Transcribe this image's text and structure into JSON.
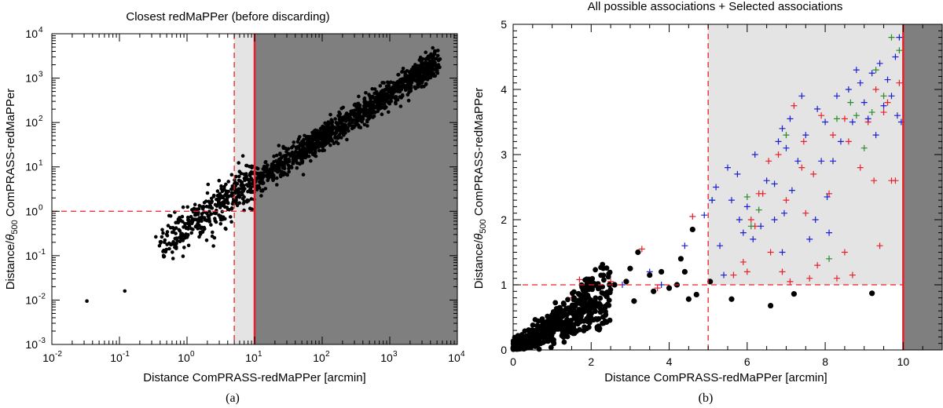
{
  "figure": {
    "caption_a": "(a)",
    "caption_b": "(b)"
  },
  "chart_data": [
    {
      "id": "a",
      "type": "scatter",
      "title": "Closest redMaPPer (before discarding)",
      "xlabel": "Distance ComPRASS-redMaPPer [arcmin]",
      "ylabel_prefix": "Distance/",
      "ylabel_symbol": "θ",
      "ylabel_sub": "500",
      "ylabel_suffix": " ComPRASS-redMaPPer",
      "xscale": "log",
      "yscale": "log",
      "xlim": [
        0.01,
        10000
      ],
      "ylim": [
        0.001,
        10000
      ],
      "x_ticks": [
        {
          "base": "10",
          "exp": "-2"
        },
        {
          "base": "10",
          "exp": "-1"
        },
        {
          "base": "10",
          "exp": "0"
        },
        {
          "base": "10",
          "exp": "1"
        },
        {
          "base": "10",
          "exp": "2"
        },
        {
          "base": "10",
          "exp": "3"
        },
        {
          "base": "10",
          "exp": "4"
        }
      ],
      "y_ticks": [
        {
          "base": "10",
          "exp": "-3"
        },
        {
          "base": "10",
          "exp": "-2"
        },
        {
          "base": "10",
          "exp": "-1"
        },
        {
          "base": "10",
          "exp": "0"
        },
        {
          "base": "10",
          "exp": "1"
        },
        {
          "base": "10",
          "exp": "2"
        },
        {
          "base": "10",
          "exp": "3"
        },
        {
          "base": "10",
          "exp": "4"
        }
      ],
      "light_region_x": [
        5,
        10
      ],
      "dark_region_x": [
        10,
        10000
      ],
      "vline_dashed_x": 5,
      "vline_solid_x": 10,
      "hline_dashed_y": 1,
      "colors": {
        "light": "#e4e4e4",
        "dark": "#7f7f7f",
        "points": "#000000",
        "lines": "#e8202a"
      },
      "series": [
        {
          "name": "closest redMaPPer",
          "trend_x_range": [
            0.1,
            5000
          ],
          "trend_y_at_1": 0.45,
          "scatter_dex": 0.25,
          "isolated_points": [
            [
              0.033,
              0.0095
            ],
            [
              0.12,
              0.016
            ]
          ]
        }
      ]
    },
    {
      "id": "b",
      "type": "scatter",
      "title": "All possible associations + Selected associations",
      "xlabel": "Distance ComPRASS-redMaPPer [arcmin]",
      "ylabel_prefix": "Distance/",
      "ylabel_symbol": "θ",
      "ylabel_sub": "500",
      "ylabel_suffix": " ComPRASS-redMaPPer",
      "xlim": [
        0,
        11
      ],
      "ylim": [
        0,
        5
      ],
      "x_ticks": [
        "0",
        "2",
        "4",
        "6",
        "8",
        "10"
      ],
      "y_ticks": [
        "0",
        "1",
        "2",
        "3",
        "4",
        "5"
      ],
      "light_region_x": [
        5,
        10
      ],
      "dark_region_x": [
        10,
        11
      ],
      "vline_dashed_x": 5,
      "vline_solid_x": 10,
      "hline_dashed_y": 1,
      "colors": {
        "light": "#e4e4e4",
        "dark": "#7f7f7f",
        "lines": "#e8202a"
      },
      "series": [
        {
          "name": "selected associations",
          "marker": "dot",
          "color": "#000000",
          "points": [
            [
              5.05,
              1.05
            ],
            [
              5.6,
              0.78
            ],
            [
              6.6,
              0.68
            ],
            [
              7.2,
              0.86
            ],
            [
              9.2,
              0.87
            ],
            [
              4.2,
              1.0
            ],
            [
              4.5,
              0.78
            ],
            [
              4.3,
              1.4
            ],
            [
              3.8,
              1.2
            ],
            [
              3.5,
              1.15
            ],
            [
              3.2,
              1.5
            ],
            [
              2.9,
              1.05
            ],
            [
              2.6,
              1.0
            ],
            [
              2.4,
              0.82
            ],
            [
              4.6,
              1.85
            ],
            [
              4.7,
              0.85
            ],
            [
              3.0,
              1.25
            ],
            [
              2.2,
              0.95
            ],
            [
              1.95,
              1.05
            ],
            [
              1.7,
              0.85
            ],
            [
              4.0,
              0.95
            ],
            [
              3.6,
              0.9
            ],
            [
              3.1,
              0.75
            ],
            [
              4.4,
              1.2
            ],
            [
              2.0,
              0.7
            ]
          ],
          "dense_cloud": {
            "x_range": [
              0,
              2.5
            ],
            "slope": 0.42,
            "spread": 0.18
          }
        },
        {
          "name": "possible associations (red)",
          "marker": "plus",
          "color": "#e8202a",
          "points": [
            [
              4.6,
              2.05
            ],
            [
              3.3,
              1.55
            ],
            [
              1.5,
              0.8
            ],
            [
              1.7,
              1.08
            ],
            [
              2.5,
              1.05
            ],
            [
              3.7,
              0.95
            ],
            [
              6.0,
              1.2
            ],
            [
              6.2,
              1.9
            ],
            [
              6.3,
              2.4
            ],
            [
              6.4,
              2.4
            ],
            [
              6.55,
              2.9
            ],
            [
              6.6,
              1.5
            ],
            [
              6.8,
              3.0
            ],
            [
              6.9,
              1.2
            ],
            [
              7.0,
              2.3
            ],
            [
              7.2,
              3.75
            ],
            [
              7.4,
              2.8
            ],
            [
              7.45,
              3.2
            ],
            [
              7.5,
              2.1
            ],
            [
              7.6,
              1.1
            ],
            [
              7.7,
              2.7
            ],
            [
              7.8,
              1.3
            ],
            [
              8.1,
              2.4
            ],
            [
              8.2,
              3.3
            ],
            [
              8.5,
              1.5
            ],
            [
              8.5,
              3.55
            ],
            [
              8.6,
              3.2
            ],
            [
              8.7,
              1.15
            ],
            [
              8.9,
              2.8
            ],
            [
              9.1,
              3.5
            ],
            [
              9.25,
              2.6
            ],
            [
              9.3,
              4.0
            ],
            [
              9.4,
              1.6
            ],
            [
              9.5,
              3.65
            ],
            [
              9.6,
              3.8
            ],
            [
              9.8,
              2.6
            ],
            [
              9.9,
              4.1
            ],
            [
              5.9,
              1.35
            ],
            [
              5.65,
              1.15
            ],
            [
              6.1,
              2.0
            ],
            [
              7.1,
              1.05
            ],
            [
              8.3,
              1.1
            ],
            [
              9.7,
              2.6
            ],
            [
              7.9,
              3.6
            ]
          ]
        },
        {
          "name": "possible associations (green)",
          "marker": "plus",
          "color": "#2a8a2a",
          "points": [
            [
              6.3,
              2.15
            ],
            [
              7.0,
              3.3
            ],
            [
              8.1,
              1.4
            ],
            [
              8.3,
              3.55
            ],
            [
              8.65,
              3.8
            ],
            [
              8.8,
              3.6
            ],
            [
              9.0,
              3.1
            ],
            [
              9.3,
              4.3
            ],
            [
              9.5,
              3.9
            ],
            [
              9.7,
              4.8
            ],
            [
              9.9,
              4.6
            ],
            [
              9.2,
              3.65
            ],
            [
              6.0,
              2.35
            ],
            [
              5.1,
              2.3
            ],
            [
              6.1,
              1.9
            ]
          ]
        },
        {
          "name": "possible associations (blue)",
          "marker": "plus",
          "color": "#1a20d0",
          "points": [
            [
              2.8,
              1.0
            ],
            [
              3.5,
              1.2
            ],
            [
              3.8,
              1.0
            ],
            [
              4.4,
              1.6
            ],
            [
              4.9,
              2.07
            ],
            [
              5.1,
              2.3
            ],
            [
              5.3,
              1.6
            ],
            [
              5.2,
              2.5
            ],
            [
              5.5,
              2.8
            ],
            [
              5.6,
              2.3
            ],
            [
              5.75,
              2.7
            ],
            [
              5.9,
              1.8
            ],
            [
              6.0,
              2.2
            ],
            [
              6.15,
              1.7
            ],
            [
              6.2,
              3.0
            ],
            [
              6.5,
              2.6
            ],
            [
              6.7,
              2.0
            ],
            [
              6.8,
              3.2
            ],
            [
              6.9,
              3.4
            ],
            [
              6.95,
              2.1
            ],
            [
              7.0,
              3.1
            ],
            [
              7.1,
              3.55
            ],
            [
              7.3,
              2.9
            ],
            [
              7.4,
              3.9
            ],
            [
              7.5,
              3.3
            ],
            [
              7.6,
              1.7
            ],
            [
              7.75,
              2.0
            ],
            [
              7.8,
              3.7
            ],
            [
              7.9,
              2.9
            ],
            [
              8.0,
              3.5
            ],
            [
              8.1,
              1.8
            ],
            [
              8.2,
              2.9
            ],
            [
              8.3,
              3.9
            ],
            [
              8.4,
              3.2
            ],
            [
              8.6,
              4.0
            ],
            [
              8.7,
              3.5
            ],
            [
              8.8,
              4.3
            ],
            [
              8.9,
              4.1
            ],
            [
              9.0,
              3.8
            ],
            [
              9.1,
              3.55
            ],
            [
              9.2,
              4.25
            ],
            [
              9.3,
              3.3
            ],
            [
              9.4,
              4.4
            ],
            [
              9.5,
              3.75
            ],
            [
              9.6,
              4.15
            ],
            [
              9.7,
              3.9
            ],
            [
              9.8,
              4.5
            ],
            [
              9.85,
              3.6
            ],
            [
              9.95,
              3.5
            ],
            [
              9.9,
              4.8
            ],
            [
              6.35,
              1.9
            ],
            [
              6.9,
              1.5
            ],
            [
              7.15,
              2.45
            ],
            [
              5.4,
              1.15
            ],
            [
              5.8,
              2.0
            ],
            [
              8.05,
              2.35
            ],
            [
              6.7,
              2.55
            ]
          ]
        }
      ]
    }
  ]
}
